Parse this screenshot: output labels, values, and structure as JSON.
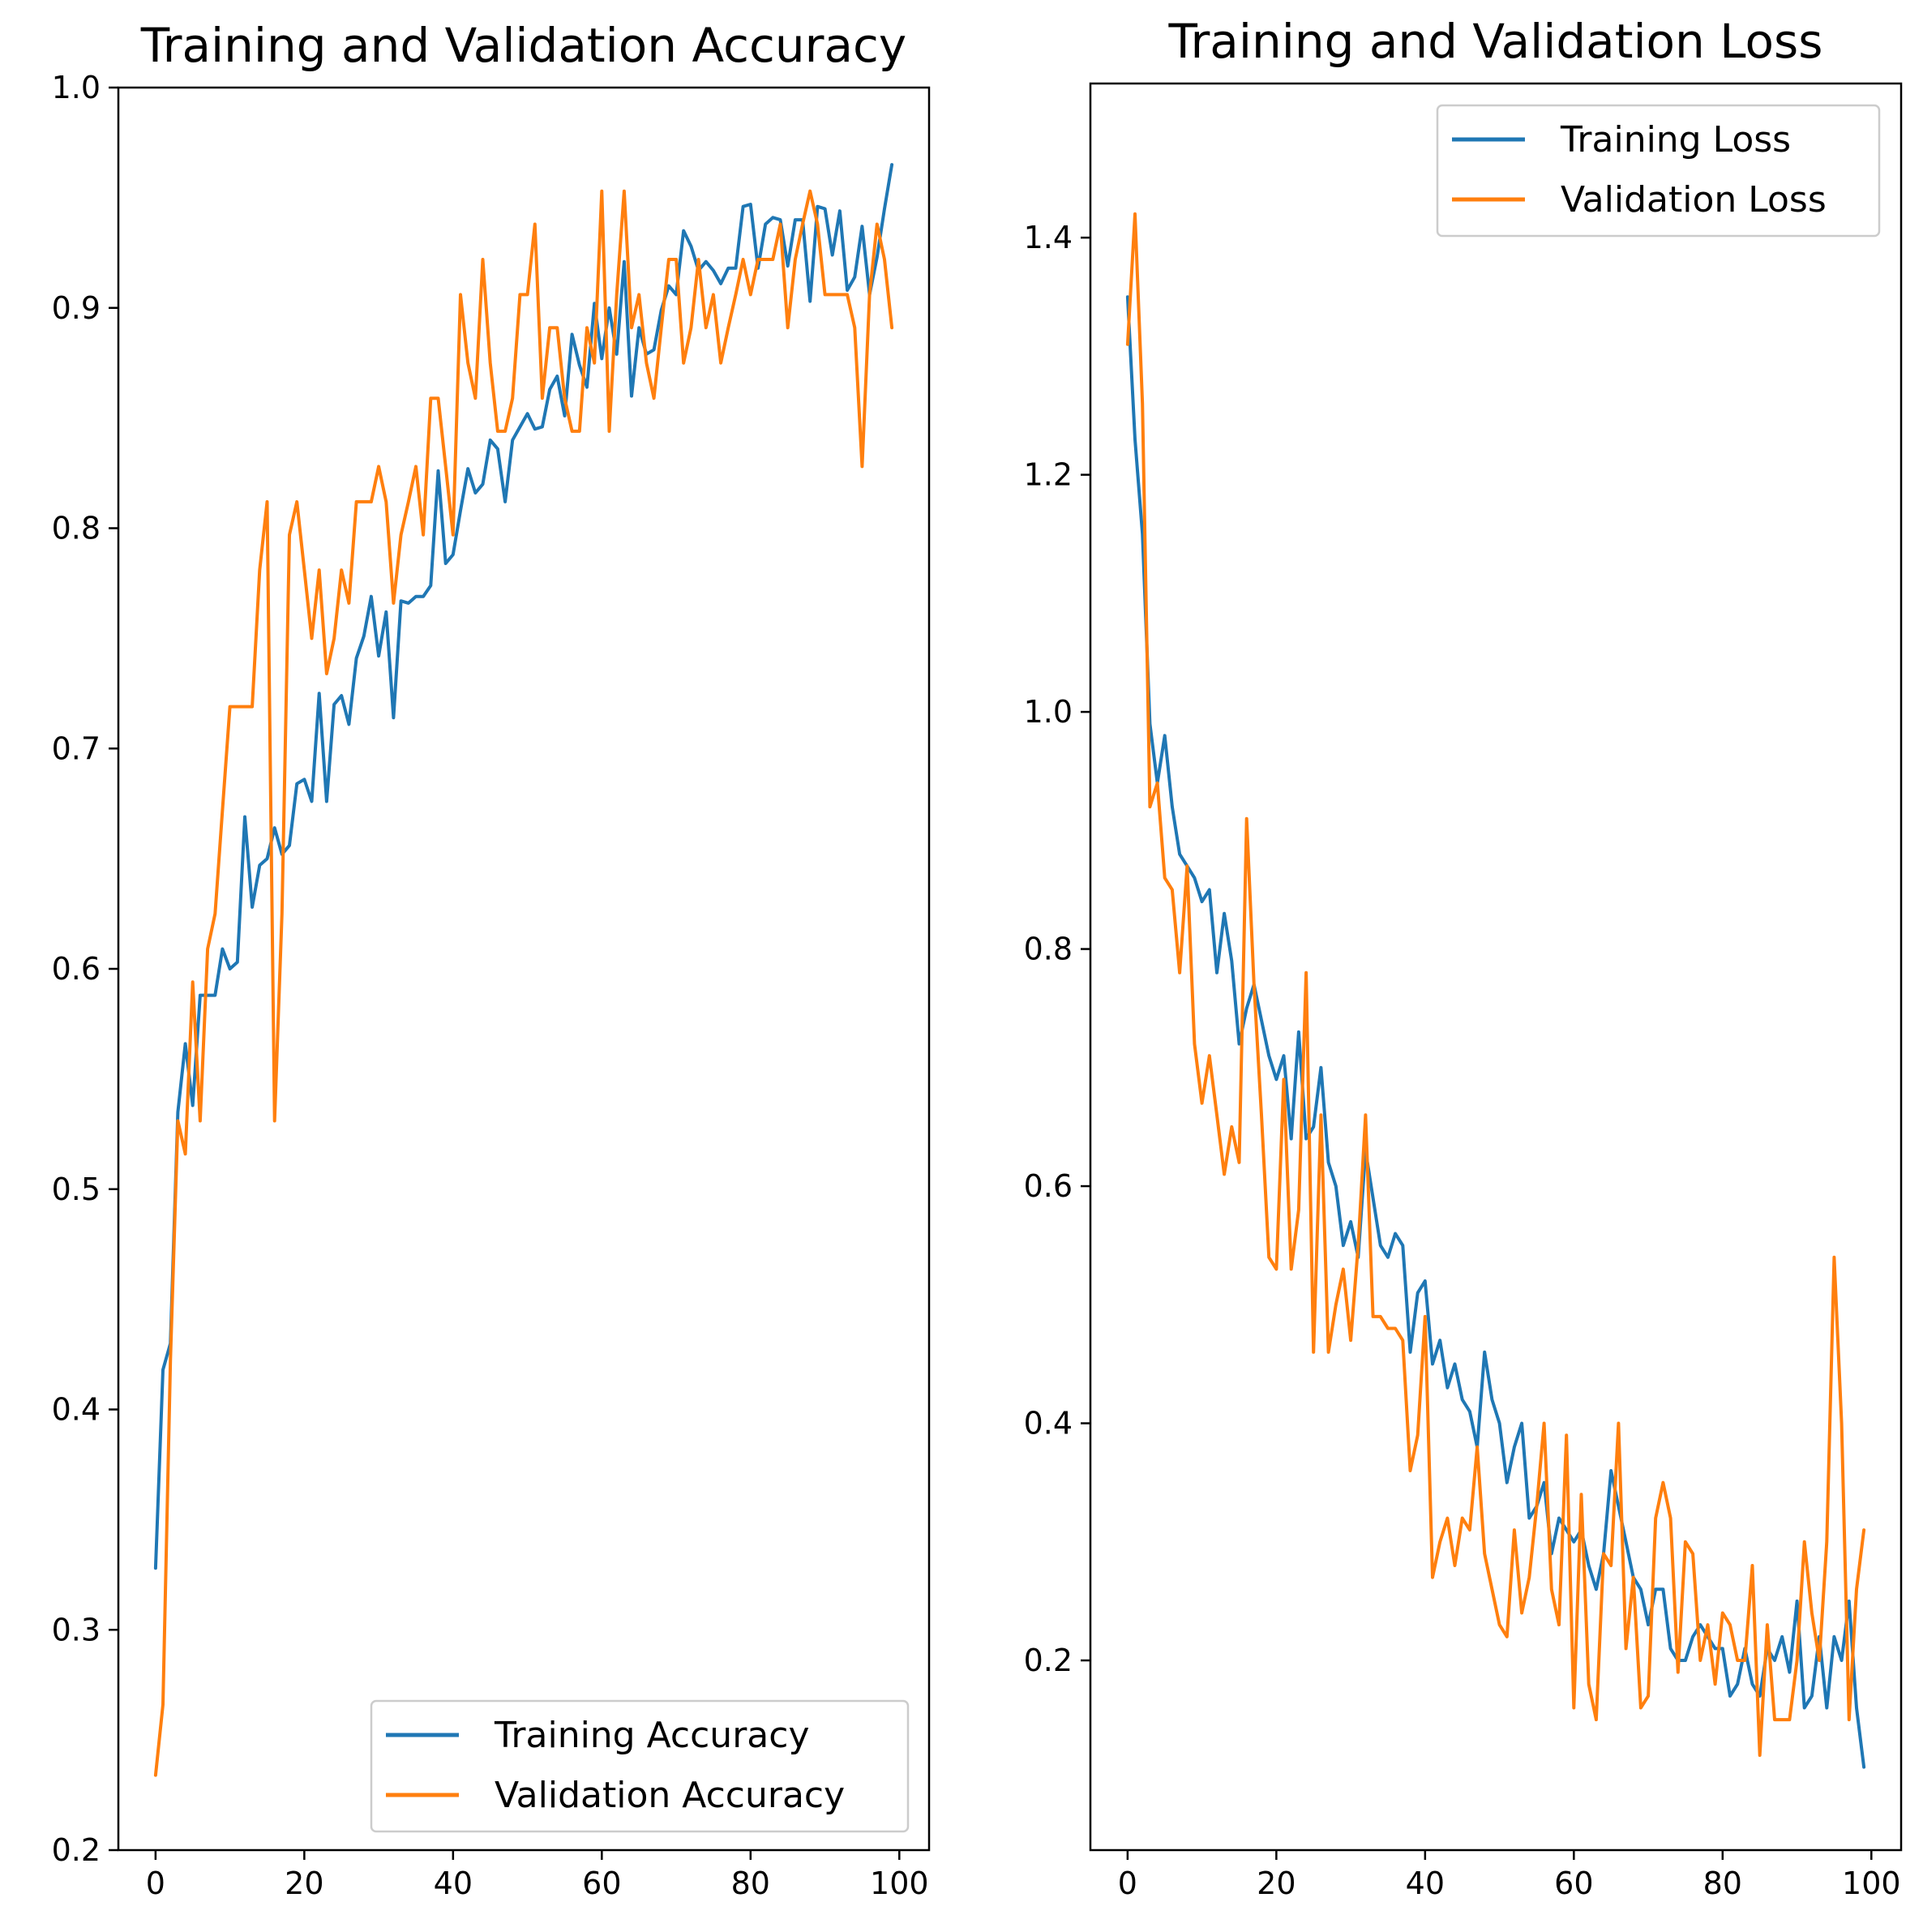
{
  "colors": {
    "training": "#1f77b4",
    "validation": "#ff7f0e"
  },
  "chart_data": [
    {
      "type": "line",
      "title": "Training and Validation Accuracy",
      "xlabel": "",
      "ylabel": "",
      "xlim": [
        -5,
        104
      ],
      "ylim": [
        0.2,
        1.0
      ],
      "xticks": [
        0,
        20,
        40,
        60,
        80,
        100
      ],
      "xtick_labels": [
        "0",
        "20",
        "40",
        "60",
        "80",
        "100"
      ],
      "yticks": [
        0.2,
        0.3,
        0.4,
        0.5,
        0.6,
        0.7,
        0.8,
        0.9,
        1.0
      ],
      "ytick_labels": [
        "0.2",
        "0.3",
        "0.4",
        "0.5",
        "0.6",
        "0.7",
        "0.8",
        "0.9",
        "1.0"
      ],
      "grid": false,
      "legend": "lower right",
      "x": [
        0,
        1,
        2,
        3,
        4,
        5,
        6,
        7,
        8,
        9,
        10,
        11,
        12,
        13,
        14,
        15,
        16,
        17,
        18,
        19,
        20,
        21,
        22,
        23,
        24,
        25,
        26,
        27,
        28,
        29,
        30,
        31,
        32,
        33,
        34,
        35,
        36,
        37,
        38,
        39,
        40,
        41,
        42,
        43,
        44,
        45,
        46,
        47,
        48,
        49,
        50,
        51,
        52,
        53,
        54,
        55,
        56,
        57,
        58,
        59,
        60,
        61,
        62,
        63,
        64,
        65,
        66,
        67,
        68,
        69,
        70,
        71,
        72,
        73,
        74,
        75,
        76,
        77,
        78,
        79,
        80,
        81,
        82,
        83,
        84,
        85,
        86,
        87,
        88,
        89,
        90,
        91,
        92,
        93,
        94,
        95,
        96,
        97,
        98,
        99
      ],
      "series": [
        {
          "name": "Training Accuracy",
          "values": [
            0.328,
            0.418,
            0.43,
            0.535,
            0.566,
            0.538,
            0.588,
            0.588,
            0.588,
            0.609,
            0.6,
            0.603,
            0.669,
            0.628,
            0.647,
            0.65,
            0.664,
            0.652,
            0.656,
            0.684,
            0.686,
            0.676,
            0.725,
            0.676,
            0.72,
            0.724,
            0.711,
            0.741,
            0.751,
            0.769,
            0.742,
            0.762,
            0.714,
            0.767,
            0.766,
            0.769,
            0.769,
            0.774,
            0.826,
            0.784,
            0.788,
            0.808,
            0.827,
            0.816,
            0.82,
            0.84,
            0.836,
            0.812,
            0.84,
            0.846,
            0.852,
            0.845,
            0.846,
            0.863,
            0.869,
            0.851,
            0.888,
            0.874,
            0.864,
            0.902,
            0.877,
            0.9,
            0.879,
            0.921,
            0.86,
            0.891,
            0.879,
            0.881,
            0.899,
            0.91,
            0.906,
            0.935,
            0.928,
            0.917,
            0.921,
            0.917,
            0.911,
            0.918,
            0.918,
            0.946,
            0.947,
            0.918,
            0.938,
            0.941,
            0.94,
            0.919,
            0.94,
            0.94,
            0.903,
            0.946,
            0.945,
            0.924,
            0.944,
            0.908,
            0.914,
            0.937,
            0.906,
            0.923,
            0.945,
            0.965
          ]
        },
        {
          "name": "Validation Accuracy",
          "values": [
            0.234,
            0.266,
            0.422,
            0.531,
            0.516,
            0.594,
            0.531,
            0.609,
            0.625,
            0.672,
            0.719,
            0.719,
            0.719,
            0.719,
            0.781,
            0.812,
            0.531,
            0.625,
            0.797,
            0.812,
            0.781,
            0.75,
            0.781,
            0.734,
            0.75,
            0.781,
            0.766,
            0.812,
            0.812,
            0.812,
            0.828,
            0.812,
            0.766,
            0.797,
            0.812,
            0.828,
            0.797,
            0.859,
            0.859,
            0.828,
            0.797,
            0.906,
            0.875,
            0.859,
            0.922,
            0.875,
            0.844,
            0.844,
            0.859,
            0.906,
            0.906,
            0.938,
            0.859,
            0.891,
            0.891,
            0.859,
            0.844,
            0.844,
            0.891,
            0.875,
            0.953,
            0.844,
            0.906,
            0.953,
            0.891,
            0.906,
            0.875,
            0.859,
            0.891,
            0.922,
            0.922,
            0.875,
            0.891,
            0.922,
            0.891,
            0.906,
            0.875,
            0.891,
            0.906,
            0.922,
            0.906,
            0.922,
            0.922,
            0.922,
            0.938,
            0.891,
            0.922,
            0.938,
            0.953,
            0.938,
            0.906,
            0.906,
            0.906,
            0.906,
            0.891,
            0.828,
            0.906,
            0.938,
            0.922,
            0.891
          ]
        }
      ]
    },
    {
      "type": "line",
      "title": "Training and Validation Loss",
      "xlabel": "",
      "ylabel": "",
      "xlim": [
        -5,
        104
      ],
      "ylim": [
        0.04,
        1.53
      ],
      "xticks": [
        0,
        20,
        40,
        60,
        80,
        100
      ],
      "xtick_labels": [
        "0",
        "20",
        "40",
        "60",
        "80",
        "100"
      ],
      "yticks": [
        0.2,
        0.4,
        0.6,
        0.8,
        1.0,
        1.2,
        1.4
      ],
      "ytick_labels": [
        "0.2",
        "0.4",
        "0.6",
        "0.8",
        "1.0",
        "1.2",
        "1.4"
      ],
      "grid": false,
      "legend": "upper right",
      "x": [
        0,
        1,
        2,
        3,
        4,
        5,
        6,
        7,
        8,
        9,
        10,
        11,
        12,
        13,
        14,
        15,
        16,
        17,
        18,
        19,
        20,
        21,
        22,
        23,
        24,
        25,
        26,
        27,
        28,
        29,
        30,
        31,
        32,
        33,
        34,
        35,
        36,
        37,
        38,
        39,
        40,
        41,
        42,
        43,
        44,
        45,
        46,
        47,
        48,
        49,
        50,
        51,
        52,
        53,
        54,
        55,
        56,
        57,
        58,
        59,
        60,
        61,
        62,
        63,
        64,
        65,
        66,
        67,
        68,
        69,
        70,
        71,
        72,
        73,
        74,
        75,
        76,
        77,
        78,
        79,
        80,
        81,
        82,
        83,
        84,
        85,
        86,
        87,
        88,
        89,
        90,
        91,
        92,
        93,
        94,
        95,
        96,
        97,
        98,
        99
      ],
      "series": [
        {
          "name": "Training Loss",
          "values": [
            1.35,
            1.23,
            1.15,
            0.99,
            0.94,
            0.98,
            0.92,
            0.88,
            0.87,
            0.86,
            0.84,
            0.85,
            0.78,
            0.83,
            0.79,
            0.72,
            0.75,
            0.77,
            0.74,
            0.71,
            0.69,
            0.71,
            0.64,
            0.73,
            0.64,
            0.65,
            0.7,
            0.62,
            0.6,
            0.55,
            0.57,
            0.54,
            0.63,
            0.59,
            0.55,
            0.54,
            0.56,
            0.55,
            0.46,
            0.51,
            0.52,
            0.45,
            0.47,
            0.43,
            0.45,
            0.42,
            0.41,
            0.38,
            0.46,
            0.42,
            0.4,
            0.35,
            0.38,
            0.4,
            0.32,
            0.33,
            0.35,
            0.29,
            0.32,
            0.31,
            0.3,
            0.31,
            0.28,
            0.26,
            0.29,
            0.36,
            0.33,
            0.3,
            0.27,
            0.26,
            0.23,
            0.26,
            0.26,
            0.21,
            0.2,
            0.2,
            0.22,
            0.23,
            0.22,
            0.21,
            0.21,
            0.17,
            0.18,
            0.21,
            0.18,
            0.17,
            0.21,
            0.2,
            0.22,
            0.19,
            0.25,
            0.16,
            0.17,
            0.22,
            0.16,
            0.22,
            0.2,
            0.25,
            0.16,
            0.11
          ]
        },
        {
          "name": "Validation Loss",
          "values": [
            1.31,
            1.42,
            1.26,
            0.92,
            0.94,
            0.86,
            0.85,
            0.78,
            0.87,
            0.72,
            0.67,
            0.71,
            0.66,
            0.61,
            0.65,
            0.62,
            0.91,
            0.77,
            0.66,
            0.54,
            0.53,
            0.69,
            0.53,
            0.58,
            0.78,
            0.46,
            0.66,
            0.46,
            0.5,
            0.53,
            0.47,
            0.55,
            0.66,
            0.49,
            0.49,
            0.48,
            0.48,
            0.47,
            0.36,
            0.39,
            0.49,
            0.27,
            0.3,
            0.32,
            0.28,
            0.32,
            0.31,
            0.38,
            0.29,
            0.26,
            0.23,
            0.22,
            0.31,
            0.24,
            0.27,
            0.33,
            0.4,
            0.26,
            0.23,
            0.39,
            0.16,
            0.34,
            0.18,
            0.15,
            0.29,
            0.28,
            0.4,
            0.21,
            0.27,
            0.16,
            0.17,
            0.32,
            0.35,
            0.32,
            0.19,
            0.3,
            0.29,
            0.2,
            0.23,
            0.18,
            0.24,
            0.23,
            0.2,
            0.2,
            0.28,
            0.12,
            0.23,
            0.15,
            0.15,
            0.15,
            0.2,
            0.3,
            0.24,
            0.2,
            0.3,
            0.54,
            0.4,
            0.15,
            0.26,
            0.31
          ]
        }
      ]
    }
  ]
}
